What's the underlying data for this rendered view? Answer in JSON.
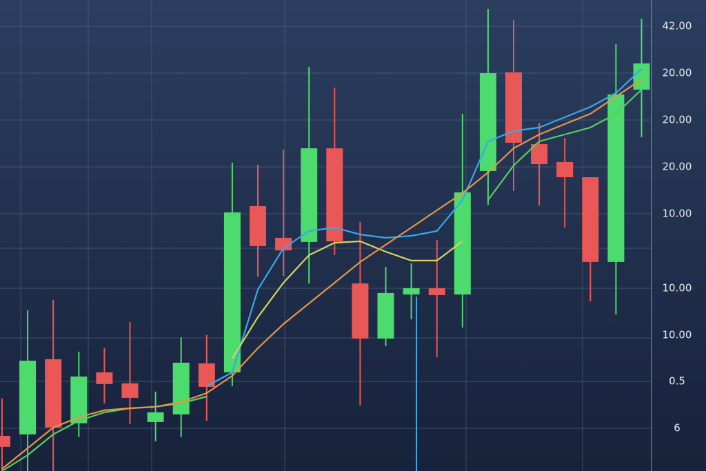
{
  "chart_data": {
    "type": "candlestick",
    "categories": [
      null,
      null,
      null,
      null,
      null,
      null,
      null,
      null,
      null,
      null,
      null,
      null,
      null,
      null,
      null,
      null,
      null,
      null,
      null,
      null,
      null,
      null,
      null,
      null,
      null,
      null
    ],
    "open": [
      5.32,
      5.45,
      12.18,
      6.44,
      11.0,
      10.02,
      6.56,
      7.24,
      11.81,
      11.0,
      25.89,
      23.05,
      22.68,
      31.07,
      18.97,
      14.03,
      17.98,
      18.54,
      17.98,
      29.04,
      37.87,
      31.44,
      29.84,
      28.48,
      20.89,
      36.32
    ],
    "high": [
      8.66,
      16.56,
      17.49,
      12.86,
      13.17,
      15.51,
      9.28,
      14.15,
      14.34,
      29.78,
      29.59,
      30.95,
      38.36,
      36.51,
      24.47,
      20.45,
      20.76,
      22.86,
      34.16,
      43.55,
      42.56,
      33.36,
      32.0,
      28.48,
      40.4,
      42.68
    ],
    "low": [
      2.17,
      2.17,
      2.17,
      5.2,
      8.23,
      6.37,
      4.83,
      5.2,
      6.68,
      9.77,
      19.59,
      19.65,
      18.97,
      21.5,
      8.04,
      13.35,
      15.76,
      12.36,
      15.02,
      26.01,
      27.25,
      25.95,
      23.97,
      17.37,
      16.19,
      32.06
    ],
    "close": [
      4.34,
      12.05,
      6.06,
      10.63,
      9.96,
      8.72,
      7.42,
      11.87,
      9.71,
      25.33,
      22.31,
      21.93,
      31.07,
      22.74,
      14.03,
      18.11,
      18.54,
      17.92,
      27.12,
      37.8,
      31.57,
      29.65,
      28.48,
      20.89,
      35.89,
      38.67
    ],
    "up_color": "#4cdb6c",
    "down_color": "#e95757",
    "overlays": [
      {
        "color": "#3aa8ea",
        "values": [
          null,
          null,
          null,
          null,
          null,
          null,
          null,
          null,
          9.77,
          11.0,
          18.42,
          22.12,
          23.66,
          23.97,
          23.35,
          23.05,
          23.23,
          23.66,
          26.44,
          31.69,
          32.62,
          32.93,
          33.85,
          34.78,
          36.01,
          38.18
        ]
      },
      {
        "color": "#d6d65a",
        "values": [
          null,
          null,
          null,
          null,
          null,
          null,
          null,
          null,
          null,
          12.24,
          15.95,
          19.03,
          21.5,
          22.61,
          22.74,
          21.81,
          21.01,
          21.01,
          22.74,
          null,
          null,
          null,
          null,
          null,
          null,
          null
        ]
      },
      {
        "color": "#5ccf5a",
        "values": [
          2.17,
          3.59,
          5.45,
          6.68,
          7.42,
          7.79,
          7.92,
          8.23,
          8.84,
          null,
          null,
          null,
          null,
          null,
          null,
          null,
          null,
          null,
          null,
          26.44,
          29.53,
          31.69,
          32.31,
          32.93,
          34.16,
          36.32
        ]
      },
      {
        "color": "#e8954a",
        "values": [
          2.36,
          4.21,
          6.06,
          6.99,
          7.61,
          7.79,
          7.92,
          8.35,
          9.15,
          10.7,
          13.17,
          15.33,
          17.18,
          19.03,
          20.89,
          22.43,
          23.97,
          25.52,
          27.06,
          28.91,
          31.07,
          32.31,
          33.24,
          34.16,
          35.7,
          37.25
        ]
      }
    ],
    "ylim": [
      2.17,
      44.35
    ],
    "y_labels": [
      "42.00",
      "20.00",
      "20.00",
      "20.00",
      "10.00",
      "10.00",
      "10.00",
      "0.5",
      "6"
    ]
  }
}
